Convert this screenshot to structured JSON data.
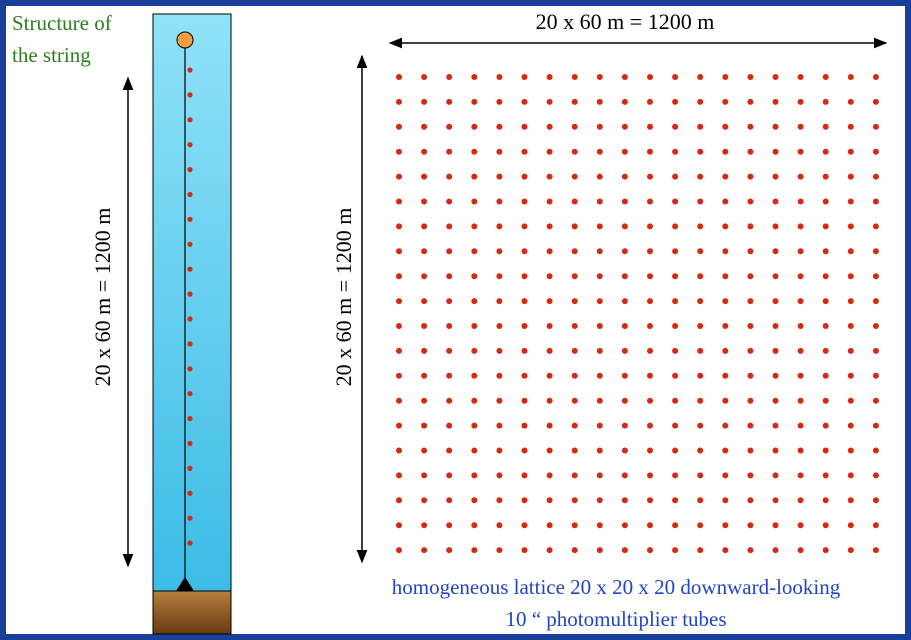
{
  "string_label": [
    "Structure of",
    "the string"
  ],
  "string_height_label": "20 x 60 m = 1200 m",
  "lattice_width_label": "20 x 60 m = 1200 m",
  "lattice_height_label": "20 x 60 m = 1200 m",
  "caption": [
    "homogeneous lattice 20 x 20 x 20 downward-looking",
    "10 “ photomultiplier tubes"
  ]
}
